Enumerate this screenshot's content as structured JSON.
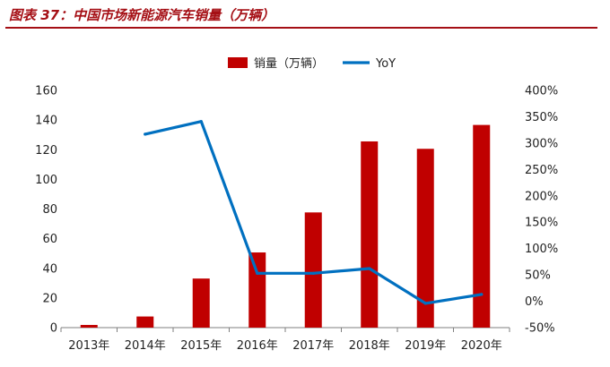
{
  "figure": {
    "title": "图表 37：中国市场新能源汽车销量（万辆）"
  },
  "chart_data": {
    "type": "bar",
    "categories": [
      "2013年",
      "2014年",
      "2015年",
      "2016年",
      "2017年",
      "2018年",
      "2019年",
      "2020年"
    ],
    "series": [
      {
        "name": "销量（万辆）",
        "type": "bar",
        "axis": "left",
        "values": [
          1.8,
          7.5,
          33.1,
          50.7,
          77.7,
          125.6,
          120.6,
          136.7
        ]
      },
      {
        "name": "YoY",
        "type": "line",
        "axis": "right",
        "values": [
          null,
          317,
          341,
          53,
          53,
          62,
          -4,
          13
        ]
      }
    ],
    "y_left": {
      "ylim": [
        0,
        160
      ],
      "ticks": [
        "0",
        "20",
        "40",
        "60",
        "80",
        "100",
        "120",
        "140",
        "160"
      ]
    },
    "y_right": {
      "ylim": [
        -50,
        400
      ],
      "ticks": [
        "-50%",
        "0%",
        "50%",
        "100%",
        "150%",
        "200%",
        "250%",
        "300%",
        "350%",
        "400%"
      ]
    },
    "legend": {
      "position": "top-center"
    },
    "grid": false,
    "colors": {
      "bar": "#c00000",
      "line": "#0070c0",
      "title": "#a50f15"
    }
  }
}
